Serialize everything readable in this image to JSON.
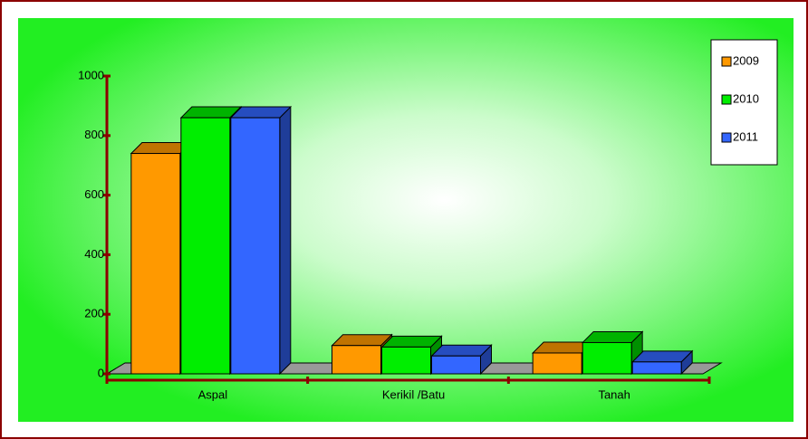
{
  "chart_data": {
    "type": "bar3d",
    "categories": [
      "Aspal",
      "Kerikil /Batu",
      "Tanah"
    ],
    "series": [
      {
        "name": "2009",
        "color": "#ff9900",
        "values": [
          740,
          95,
          70
        ]
      },
      {
        "name": "2010",
        "color": "#00ee00",
        "values": [
          860,
          90,
          105
        ]
      },
      {
        "name": "2011",
        "color": "#3366ff",
        "values": [
          860,
          60,
          40
        ]
      }
    ],
    "ylim": [
      0,
      1000
    ],
    "yticks": [
      0,
      200,
      400,
      600,
      800,
      1000
    ],
    "legend": "top-right"
  }
}
